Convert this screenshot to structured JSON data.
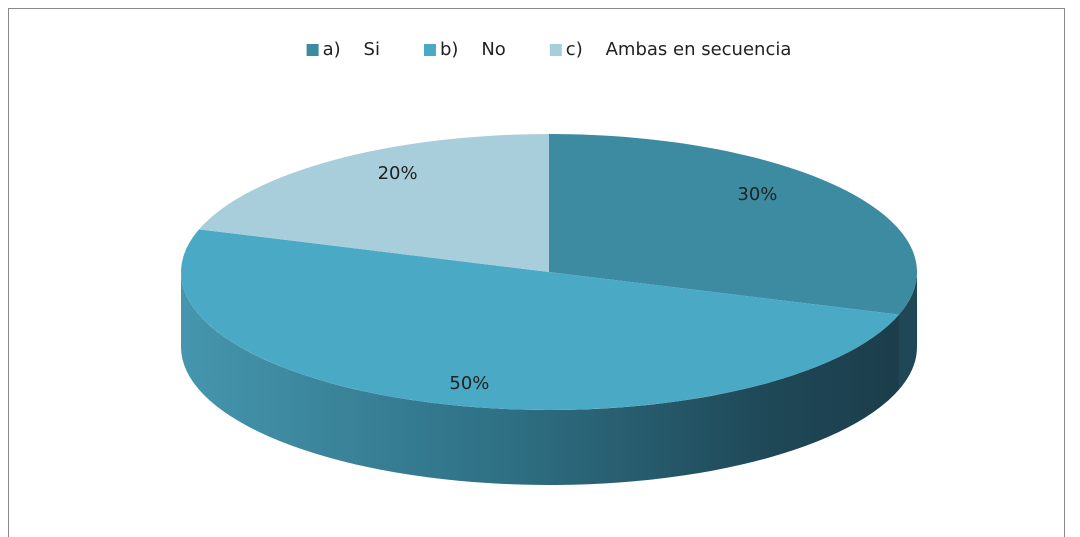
{
  "chart_data": {
    "type": "pie",
    "categories": [
      "a)    Si",
      "b)    No",
      "c)    Ambas en secuencia"
    ],
    "values": [
      30,
      50,
      20
    ],
    "value_labels": [
      "30%",
      "50%",
      "20%"
    ],
    "colors": [
      "#3c8ba1",
      "#4aaac5",
      "#a9cedb"
    ],
    "legend": "top"
  }
}
